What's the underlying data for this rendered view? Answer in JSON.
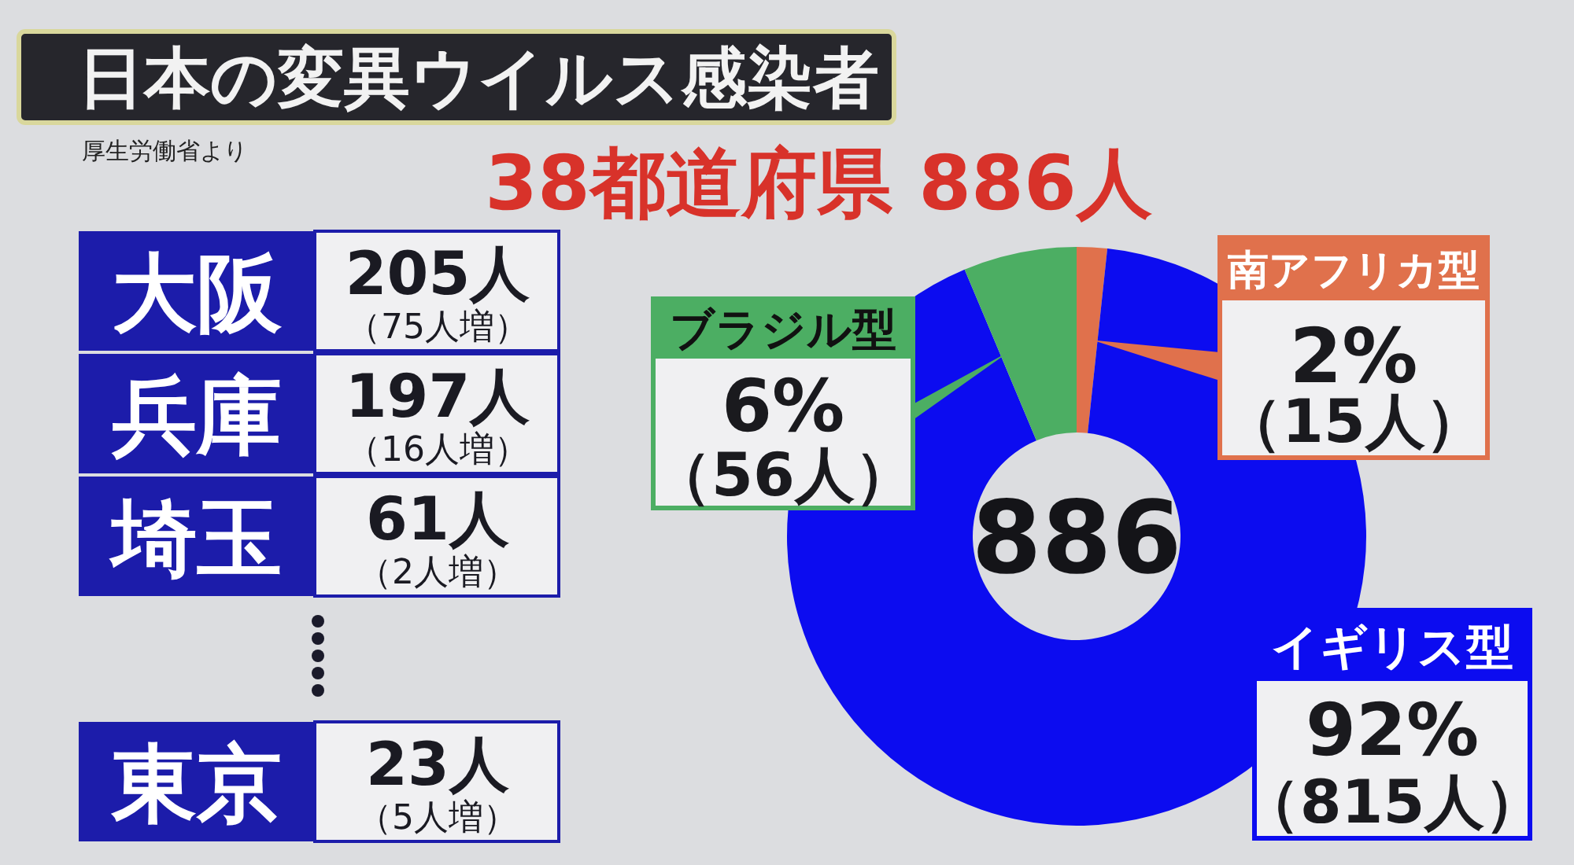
{
  "chart_data": [
    {
      "type": "other",
      "title": "日本の変異ウイルス感染者",
      "subtitle": "38都道府県 886人",
      "annotations": [
        "厚生労働省より"
      ],
      "categories": [
        "大阪",
        "兵庫",
        "埼玉",
        null,
        "東京"
      ],
      "series": [
        {
          "values": [
            205,
            197,
            61,
            null,
            23
          ],
          "value_labels": [
            "205人",
            "197人",
            "61人",
            null,
            "23人"
          ]
        },
        {
          "values": [
            75,
            16,
            2,
            null,
            5
          ],
          "value_labels": [
            "（75人増）",
            "（16人増）",
            "（2人増）",
            null,
            "（5人増）"
          ]
        }
      ]
    },
    {
      "type": "donut",
      "categories": [
        "南アフリカ型",
        "イギリス型",
        "ブラジル型"
      ],
      "values": [
        15,
        815,
        56
      ],
      "colors": [
        "#e0714c",
        "#0c0cf0",
        "#4cae63"
      ],
      "value_labels": [
        "2% （15人）",
        "92% （815人）",
        "6% （56人）"
      ],
      "annotations": [
        "886"
      ],
      "legend": "top"
    }
  ]
}
